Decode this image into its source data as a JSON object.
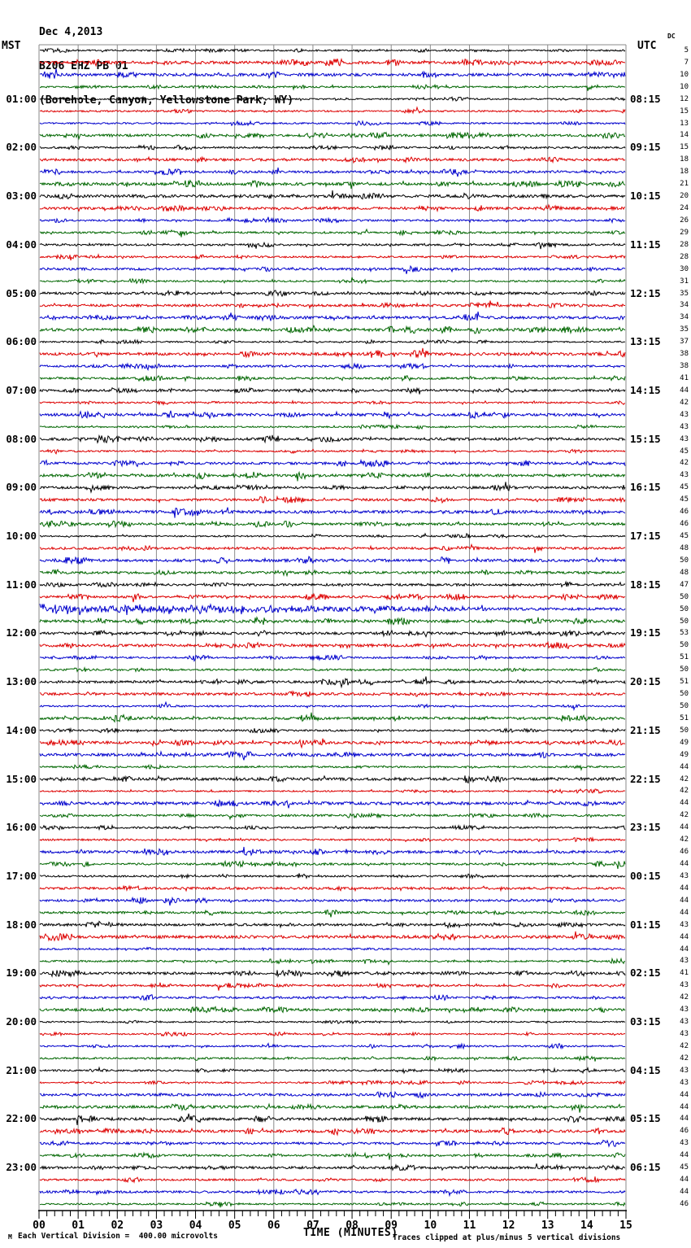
{
  "header": {
    "date": "Dec 4,2013",
    "station": "B206 EHZ PB 01",
    "location": "(Borehole, Canyon, Yellowstone Park, WY)"
  },
  "footer": {
    "mark": "M",
    "scale_note": "Each Vertical Division =  400.00 microvolts",
    "clip_note": "Traces clipped at plus/minus 5 vertical divisions"
  },
  "colors": {
    "black": "#000000",
    "red": "#dd0000",
    "blue": "#0000cc",
    "green": "#006600",
    "grid": "#8a8a8a",
    "axis": "#000000",
    "background": "#ffffff"
  },
  "chart_data": {
    "type": "line",
    "subtype": "helicorder-seismogram",
    "title": "Dec 4,2013 | B206 EHZ PB 01 | (Borehole, Canyon, Yellowstone Park, WY)",
    "xlabel": "TIME (MINUTES)",
    "x_range_minutes": [
      0,
      15
    ],
    "x_ticks": [
      "00",
      "01",
      "02",
      "03",
      "04",
      "05",
      "06",
      "07",
      "08",
      "09",
      "10",
      "11",
      "12",
      "13",
      "14",
      "15"
    ],
    "minor_ticks_per_minute": 5,
    "lines": 96,
    "minutes_per_line": 15,
    "line_colors_cycle": [
      "black",
      "red",
      "blue",
      "green"
    ],
    "grid": true,
    "left_time_axis": {
      "timezone": "MST",
      "label_every_n_lines": 4,
      "labels": [
        "01:00",
        "02:00",
        "03:00",
        "04:00",
        "05:00",
        "06:00",
        "07:00",
        "08:00",
        "09:00",
        "10:00",
        "11:00",
        "12:00",
        "13:00",
        "14:00",
        "15:00",
        "16:00",
        "17:00",
        "18:00",
        "19:00",
        "20:00",
        "21:00",
        "22:00",
        "23:00"
      ]
    },
    "right_time_axis": {
      "timezone": "UTC",
      "label_every_n_lines": 4,
      "labels": [
        "08:15",
        "09:15",
        "10:15",
        "11:15",
        "12:15",
        "13:15",
        "14:15",
        "15:15",
        "16:15",
        "17:15",
        "18:15",
        "19:15",
        "20:15",
        "21:15",
        "22:15",
        "23:15",
        "00:15",
        "01:15",
        "02:15",
        "03:15",
        "04:15",
        "05:15",
        "06:15"
      ]
    },
    "dc_offsets_column": {
      "header": "DC",
      "values": [
        5,
        7,
        10,
        10,
        12,
        15,
        13,
        14,
        15,
        18,
        18,
        21,
        20,
        24,
        26,
        29,
        28,
        28,
        30,
        31,
        35,
        34,
        34,
        35,
        37,
        38,
        38,
        41,
        44,
        42,
        43,
        43,
        43,
        45,
        42,
        43,
        45,
        45,
        46,
        46,
        45,
        48,
        50,
        48,
        47,
        50,
        50,
        50,
        53,
        50,
        51,
        50,
        51,
        50,
        50,
        51,
        50,
        49,
        49,
        44,
        42,
        42,
        44,
        42,
        44,
        42,
        46,
        44,
        43,
        44,
        44,
        44,
        43,
        44,
        44,
        43,
        41,
        43,
        42,
        43,
        43,
        43,
        42,
        42,
        43,
        43,
        44,
        44,
        44,
        46,
        43,
        44,
        45,
        44,
        44,
        46
      ]
    },
    "scale_note": "Each Vertical Division =  400.00 microvolts",
    "clip_note": "Traces clipped at plus/minus 5 vertical divisions",
    "events": [
      {
        "row": 46,
        "color": "blue",
        "mst_time": "11:30",
        "type": "tremor",
        "start_min": 0,
        "end_min": 11.5,
        "amplitude": 5,
        "description": "sustained high-amplitude signal across minutes 0-11, decaying afterwards"
      },
      {
        "row": 48,
        "color": "black",
        "mst_time": "12:00",
        "type": "spike",
        "minute": 9.55,
        "amplitude": 7,
        "description": "brief spike near minute 9.5"
      }
    ]
  }
}
